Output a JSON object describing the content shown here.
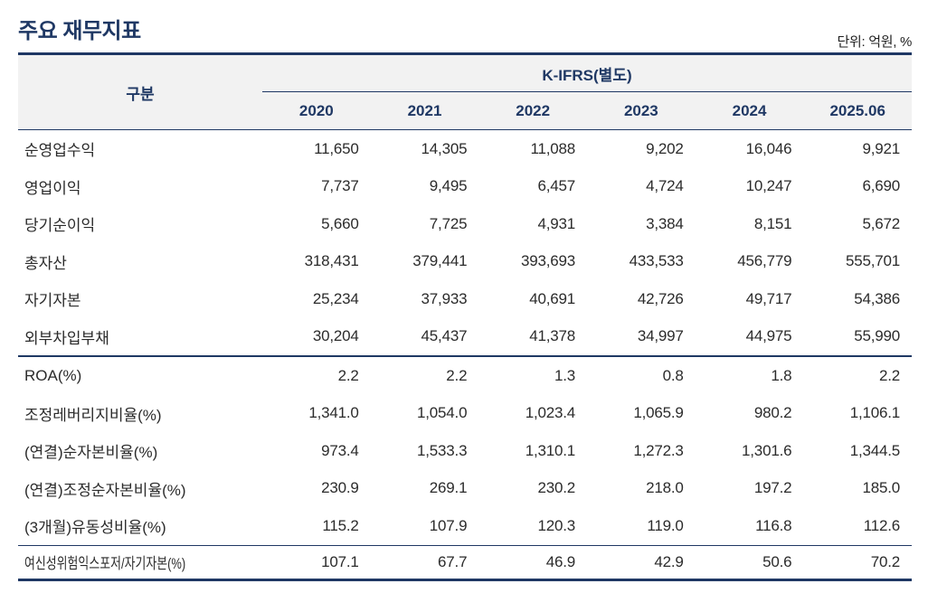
{
  "page": {
    "title": "주요 재무지표",
    "unit_label": "단위: 억원, %"
  },
  "table": {
    "category_header": "구분",
    "group_header": "K-IFRS(별도)",
    "year_headers": [
      "2020",
      "2021",
      "2022",
      "2023",
      "2024",
      "2025.06"
    ],
    "rows": [
      {
        "label": "순영업수익",
        "values": [
          "11,650",
          "14,305",
          "11,088",
          "9,202",
          "16,046",
          "9,921"
        ]
      },
      {
        "label": "영업이익",
        "values": [
          "7,737",
          "9,495",
          "6,457",
          "4,724",
          "10,247",
          "6,690"
        ]
      },
      {
        "label": "당기순이익",
        "values": [
          "5,660",
          "7,725",
          "4,931",
          "3,384",
          "8,151",
          "5,672"
        ]
      },
      {
        "label": "총자산",
        "values": [
          "318,431",
          "379,441",
          "393,693",
          "433,533",
          "456,779",
          "555,701"
        ]
      },
      {
        "label": "자기자본",
        "values": [
          "25,234",
          "37,933",
          "40,691",
          "42,726",
          "49,717",
          "54,386"
        ]
      },
      {
        "label": "외부차입부채",
        "values": [
          "30,204",
          "45,437",
          "41,378",
          "34,997",
          "44,975",
          "55,990"
        ]
      },
      {
        "label": "ROA(%)",
        "values": [
          "2.2",
          "2.2",
          "1.3",
          "0.8",
          "1.8",
          "2.2"
        ]
      },
      {
        "label": "조정레버리지비율(%)",
        "values": [
          "1,341.0",
          "1,054.0",
          "1,023.4",
          "1,065.9",
          "980.2",
          "1,106.1"
        ]
      },
      {
        "label": "(연결)순자본비율(%)",
        "values": [
          "973.4",
          "1,533.3",
          "1,310.1",
          "1,272.3",
          "1,301.6",
          "1,344.5"
        ]
      },
      {
        "label": "(연결)조정순자본비율(%)",
        "values": [
          "230.9",
          "269.1",
          "230.2",
          "218.0",
          "197.2",
          "185.0"
        ]
      },
      {
        "label": "(3개월)유동성비율(%)",
        "values": [
          "115.2",
          "107.9",
          "120.3",
          "119.0",
          "116.8",
          "112.6"
        ]
      },
      {
        "label": "여신성위험익스포저/자기자본(%)",
        "values": [
          "107.1",
          "67.7",
          "46.9",
          "42.9",
          "50.6",
          "70.2"
        ]
      }
    ]
  },
  "colors": {
    "accent_navy": "#1F3864",
    "header_background": "#F2F2F2",
    "body_text": "#2B2B2B"
  }
}
